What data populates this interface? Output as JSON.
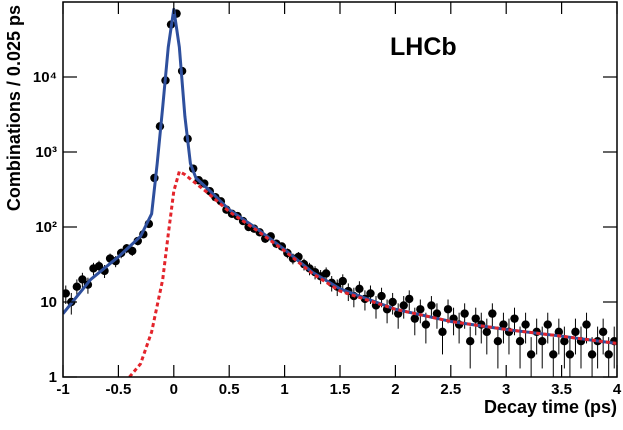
{
  "chart_data": {
    "type": "scatter",
    "annotation": "LHCb",
    "xlabel": "Decay time (ps)",
    "ylabel": "Combinations / 0.025 ps",
    "yscale": "log",
    "xlim": [
      -1,
      4
    ],
    "ylim": [
      1,
      100000
    ],
    "xticks": [
      -1,
      -0.5,
      0,
      0.5,
      1,
      1.5,
      2,
      2.5,
      3,
      3.5,
      4
    ],
    "yticks": [
      1,
      10,
      {
        "value": 100,
        "label": "10²"
      },
      {
        "value": 1000,
        "label": "10³"
      },
      {
        "value": 10000,
        "label": "10⁴"
      }
    ],
    "series": [
      {
        "marker": "circle",
        "color": "#000000",
        "x": [
          -0.975,
          -0.925,
          -0.875,
          -0.825,
          -0.775,
          -0.725,
          -0.675,
          -0.625,
          -0.575,
          -0.525,
          -0.475,
          -0.425,
          -0.375,
          -0.325,
          -0.275,
          -0.225,
          -0.175,
          -0.125,
          -0.075,
          -0.025,
          0.025,
          0.075,
          0.125,
          0.175,
          0.225,
          0.275,
          0.325,
          0.375,
          0.425,
          0.475,
          0.525,
          0.575,
          0.625,
          0.675,
          0.725,
          0.775,
          0.825,
          0.875,
          0.925,
          0.975,
          1.025,
          1.075,
          1.125,
          1.175,
          1.225,
          1.275,
          1.325,
          1.375,
          1.425,
          1.475,
          1.525,
          1.575,
          1.625,
          1.675,
          1.725,
          1.775,
          1.825,
          1.875,
          1.925,
          1.975,
          2.025,
          2.075,
          2.125,
          2.175,
          2.225,
          2.275,
          2.325,
          2.375,
          2.425,
          2.475,
          2.525,
          2.575,
          2.625,
          2.675,
          2.725,
          2.775,
          2.825,
          2.875,
          2.925,
          2.975,
          3.025,
          3.075,
          3.125,
          3.175,
          3.225,
          3.275,
          3.325,
          3.375,
          3.425,
          3.475,
          3.525,
          3.575,
          3.625,
          3.675,
          3.725,
          3.775,
          3.825,
          3.875,
          3.925,
          3.975
        ],
        "values": [
          13,
          10,
          16,
          20,
          17,
          28,
          30,
          26,
          38,
          35,
          45,
          52,
          48,
          65,
          80,
          110,
          450,
          2200,
          9000,
          50000,
          70000,
          12000,
          1500,
          600,
          420,
          380,
          300,
          250,
          220,
          170,
          150,
          140,
          120,
          100,
          95,
          85,
          70,
          75,
          60,
          55,
          45,
          38,
          40,
          32,
          28,
          25,
          22,
          24,
          18,
          16,
          19,
          14,
          12,
          15,
          11,
          13,
          9,
          12,
          8,
          10,
          7,
          9,
          11,
          6,
          8,
          5,
          9,
          7,
          4,
          8,
          6,
          5,
          7,
          3,
          6,
          5,
          4,
          7,
          3,
          5,
          4,
          6,
          3,
          5,
          2,
          4,
          3,
          5,
          2,
          4,
          3,
          2,
          4,
          3,
          5,
          2,
          3,
          4,
          2,
          3
        ],
        "errors": [
          3.6,
          3.2,
          4,
          4.5,
          4.1,
          5.3,
          5.5,
          5.1,
          6.2,
          5.9,
          6.7,
          7.2,
          6.9,
          8.1,
          8.9,
          10.5,
          21.2,
          46.9,
          94.9,
          223.6,
          264.6,
          109.5,
          38.7,
          24.5,
          20.5,
          19.5,
          17.3,
          15.8,
          14.8,
          13,
          12.2,
          11.8,
          11,
          10,
          9.7,
          9.2,
          8.4,
          8.7,
          7.7,
          7.4,
          6.7,
          6.2,
          6.3,
          5.7,
          5.3,
          5,
          4.7,
          4.9,
          4.2,
          4,
          4.4,
          3.7,
          3.5,
          3.9,
          3.3,
          3.6,
          3,
          3.5,
          2.8,
          3.2,
          2.6,
          3,
          3.3,
          2.4,
          2.8,
          2.2,
          3,
          2.6,
          2,
          2.8,
          2.4,
          2.2,
          2.6,
          1.7,
          2.4,
          2.2,
          2,
          2.6,
          1.7,
          2.2,
          2,
          2.4,
          1.7,
          2.2,
          1.4,
          2,
          1.7,
          2.2,
          1.4,
          2,
          1.7,
          1.4,
          2,
          1.7,
          2.2,
          1.4,
          1.7,
          2,
          1.4,
          1.7
        ]
      },
      {
        "line": "solid",
        "color": "#2e4f9d",
        "x": [
          -1,
          -0.75,
          -0.5,
          -0.3,
          -0.2,
          -0.15,
          -0.1,
          -0.05,
          0,
          0.05,
          0.1,
          0.15,
          0.2,
          0.3,
          0.5,
          0.75,
          1,
          1.25,
          1.5,
          2,
          2.5,
          3,
          3.5,
          4
        ],
        "values": [
          7,
          20,
          40,
          75,
          150,
          700,
          4000,
          25000,
          80000,
          25000,
          3000,
          700,
          450,
          330,
          170,
          95,
          50,
          25,
          15,
          8,
          5.5,
          4.3,
          3.5,
          2.8
        ]
      },
      {
        "line": "dashed",
        "color": "#e3242b",
        "x": [
          -0.4,
          -0.3,
          -0.2,
          -0.1,
          -0.05,
          0,
          0.05,
          0.1,
          0.2,
          0.3,
          0.5,
          0.75,
          1,
          1.25,
          1.5,
          2,
          2.5,
          3,
          3.5,
          4
        ],
        "values": [
          1,
          1.5,
          4,
          20,
          80,
          300,
          550,
          500,
          380,
          290,
          160,
          90,
          48,
          24,
          14,
          8,
          5.5,
          4.3,
          3.5,
          2.8
        ]
      }
    ]
  }
}
